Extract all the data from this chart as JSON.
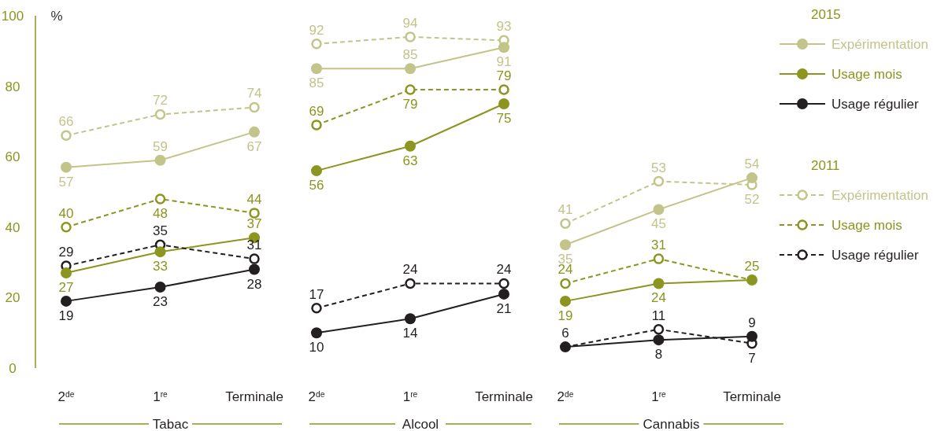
{
  "chart_data": [
    {
      "type": "line",
      "categories": [
        "2$^{de}$",
        "1$^{re}$",
        "Terminale"
      ],
      "xlabel": "Tabac",
      "ylabel": "%",
      "ylim": [
        0,
        100
      ],
      "yticks": [
        0,
        20,
        40,
        60,
        80,
        100
      ],
      "tick_labels": "xy",
      "marker": "circle",
      "series": [
        {
          "color": "#c3c48a",
          "line_style": "solid",
          "values": [
            57,
            59,
            67
          ],
          "value_labels": [
            "57",
            "59",
            "67"
          ]
        },
        {
          "color": "#8b951f",
          "line_style": "solid",
          "values": [
            27,
            33,
            37
          ],
          "value_labels": [
            "27",
            "33",
            "37"
          ]
        },
        {
          "color": "#231f20",
          "line_style": "solid",
          "values": [
            19,
            23,
            28
          ],
          "value_labels": [
            "19",
            "23",
            "28"
          ]
        },
        {
          "color": "#c3c48a",
          "line_style": "dashed",
          "values": [
            66,
            72,
            74
          ],
          "value_labels": [
            "66",
            "72",
            "74"
          ]
        },
        {
          "color": "#8b951f",
          "line_style": "dashed",
          "values": [
            40,
            48,
            44
          ],
          "value_labels": [
            "40",
            "48",
            "44"
          ]
        },
        {
          "color": "#231f20",
          "line_style": "dashed",
          "values": [
            29,
            35,
            31
          ],
          "value_labels": [
            "29",
            "35",
            "31"
          ]
        }
      ]
    },
    {
      "type": "line",
      "categories": [
        "2$^{de}$",
        "1$^{re}$",
        "Terminale"
      ],
      "xlabel": "Alcool",
      "ylim": [
        0,
        100
      ],
      "tick_labels": "x",
      "marker": "circle",
      "series": [
        {
          "color": "#c3c48a",
          "line_style": "solid",
          "values": [
            85,
            85,
            91
          ],
          "value_labels": [
            "85",
            "85",
            "91"
          ]
        },
        {
          "color": "#8b951f",
          "line_style": "solid",
          "values": [
            56,
            63,
            75
          ],
          "value_labels": [
            "56",
            "63",
            "75"
          ]
        },
        {
          "color": "#231f20",
          "line_style": "solid",
          "values": [
            10,
            14,
            21
          ],
          "value_labels": [
            "10",
            "14",
            "21"
          ]
        },
        {
          "color": "#c3c48a",
          "line_style": "dashed",
          "values": [
            92,
            94,
            93
          ],
          "value_labels": [
            "92",
            "94",
            "93"
          ]
        },
        {
          "color": "#8b951f",
          "line_style": "dashed",
          "values": [
            69,
            79,
            79
          ],
          "value_labels": [
            "69",
            "79",
            "79"
          ]
        },
        {
          "color": "#231f20",
          "line_style": "dashed",
          "values": [
            17,
            24,
            24
          ],
          "value_labels": [
            "17",
            "24",
            "24"
          ]
        }
      ]
    },
    {
      "type": "line",
      "categories": [
        "2$^{de}$",
        "1$^{re}$",
        "Terminale"
      ],
      "xlabel": "Cannabis",
      "ylim": [
        0,
        100
      ],
      "tick_labels": "x",
      "marker": "circle",
      "legend": "right",
      "annotations": [
        "2015",
        "2011"
      ],
      "series": [
        {
          "name": "Expérimentation",
          "color": "#c3c48a",
          "line_style": "solid",
          "values": [
            35,
            45,
            54
          ],
          "value_labels": [
            "35",
            "45",
            "54"
          ]
        },
        {
          "name": "Usage mois",
          "color": "#8b951f",
          "line_style": "solid",
          "values": [
            19,
            24,
            25
          ],
          "value_labels": [
            "19",
            "24",
            "25"
          ]
        },
        {
          "name": "Usage régulier",
          "color": "#231f20",
          "line_style": "solid",
          "values": [
            6,
            8,
            9
          ],
          "value_labels": [
            "6",
            "8",
            "9"
          ]
        },
        {
          "name": "Expérimentation",
          "color": "#c3c48a",
          "line_style": "dashed",
          "values": [
            41,
            53,
            52
          ],
          "value_labels": [
            "41",
            "53",
            "52"
          ]
        },
        {
          "name": "Usage mois",
          "color": "#8b951f",
          "line_style": "dashed",
          "values": [
            24,
            31,
            25
          ],
          "value_labels": [
            "24",
            "31",
            null
          ]
        },
        {
          "name": "Usage régulier",
          "color": "#231f20",
          "line_style": "dashed",
          "values": [
            6,
            11,
            7
          ],
          "value_labels": [
            null,
            "11",
            "7"
          ]
        }
      ]
    }
  ]
}
